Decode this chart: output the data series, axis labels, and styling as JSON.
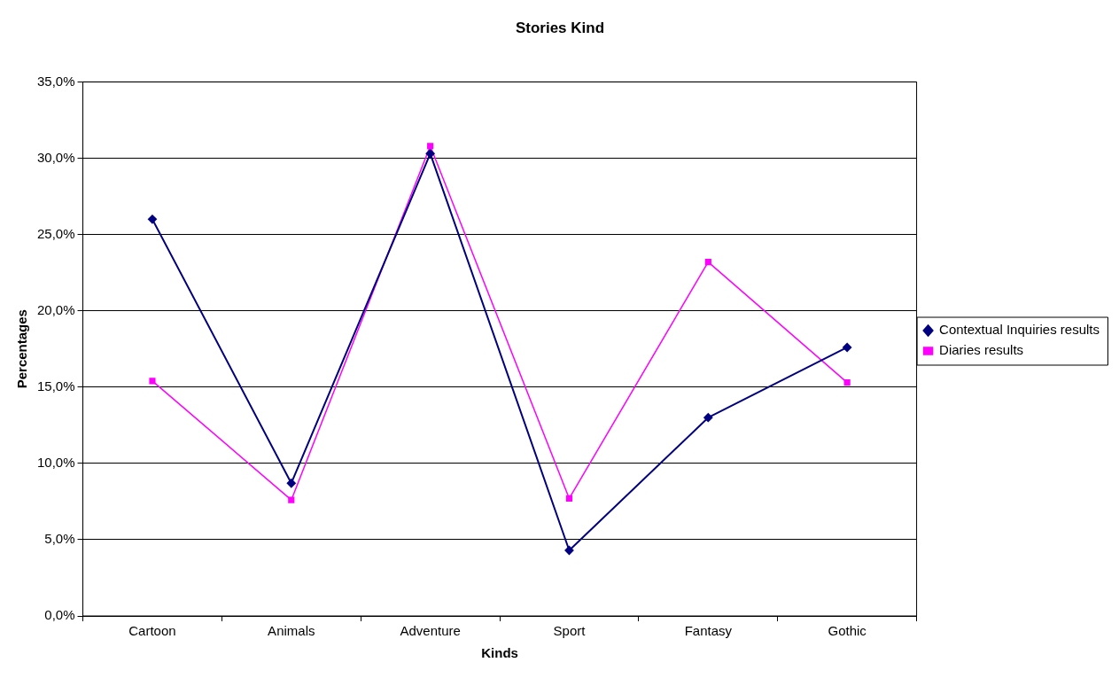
{
  "chart_data": {
    "type": "line",
    "title": "Stories Kind",
    "xlabel": "Kinds",
    "ylabel": "Percentages",
    "categories": [
      "Cartoon",
      "Animals",
      "Adventure",
      "Sport",
      "Fantasy",
      "Gothic"
    ],
    "series": [
      {
        "name": "Contextual Inquiries results",
        "color": "#000080",
        "marker": "diamond",
        "values": [
          26.0,
          8.7,
          30.3,
          4.3,
          13.0,
          17.6
        ]
      },
      {
        "name": "Diaries results",
        "color": "#ff00ff",
        "marker": "square",
        "values": [
          15.4,
          7.6,
          30.8,
          7.7,
          23.2,
          15.3
        ]
      }
    ],
    "ylim": [
      0,
      35
    ],
    "yticks": [
      {
        "value": 0,
        "label": "0,0%"
      },
      {
        "value": 5,
        "label": "5,0%"
      },
      {
        "value": 10,
        "label": "10,0%"
      },
      {
        "value": 15,
        "label": "15,0%"
      },
      {
        "value": 20,
        "label": "20,0%"
      },
      {
        "value": 25,
        "label": "25,0%"
      },
      {
        "value": 30,
        "label": "30,0%"
      },
      {
        "value": 35,
        "label": "35,0%"
      }
    ],
    "grid": "y",
    "legend": "right",
    "line_style": "solid"
  }
}
